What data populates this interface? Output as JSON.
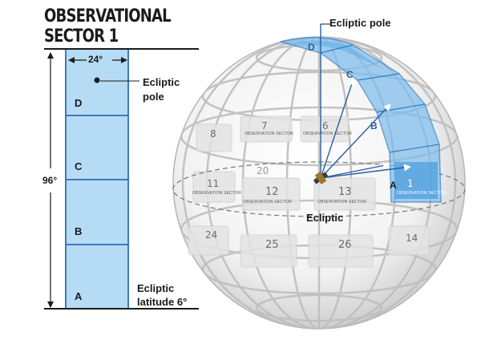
{
  "title": {
    "line1": "OBSERVATIONAL",
    "line2": "SECTOR 1"
  },
  "strip": {
    "width_label": "24°",
    "height_label": "96°",
    "segments": [
      "D",
      "C",
      "B",
      "A"
    ],
    "pole_label_line1": "Ecliptic",
    "pole_label_line2": "pole",
    "lat_label_line1": "Ecliptic",
    "lat_label_line2": "latitude 6°"
  },
  "sphere": {
    "pole_label": "Ecliptic pole",
    "equator_label": "Ecliptic",
    "vectors": [
      "D",
      "C",
      "B",
      "A"
    ],
    "highlighted_sector": "1",
    "sector_caption": "OBSERVATION SECTOR",
    "sectors": [
      {
        "num": "1",
        "caption": "OBSERVATION SECTOR"
      },
      {
        "num": "11",
        "caption": "OBSERVATION SECTOR"
      },
      {
        "num": "12",
        "caption": "OBSERVATION SECTOR"
      },
      {
        "num": "13",
        "caption": "OBSERVATION SECTOR"
      },
      {
        "num": "7",
        "caption": "OBSERVATION SECTOR"
      },
      {
        "num": "6",
        "caption": "OBSERVATION SECTOR"
      },
      {
        "num": "8",
        "caption": ""
      },
      {
        "num": "20",
        "caption": ""
      },
      {
        "num": "24",
        "caption": ""
      },
      {
        "num": "25",
        "caption": ""
      },
      {
        "num": "26",
        "caption": ""
      },
      {
        "num": "14",
        "caption": ""
      }
    ]
  },
  "colors": {
    "highlight": "#5aa9e6",
    "strip_fill": "#b6dbf5",
    "strip_border": "#3f79c2"
  }
}
